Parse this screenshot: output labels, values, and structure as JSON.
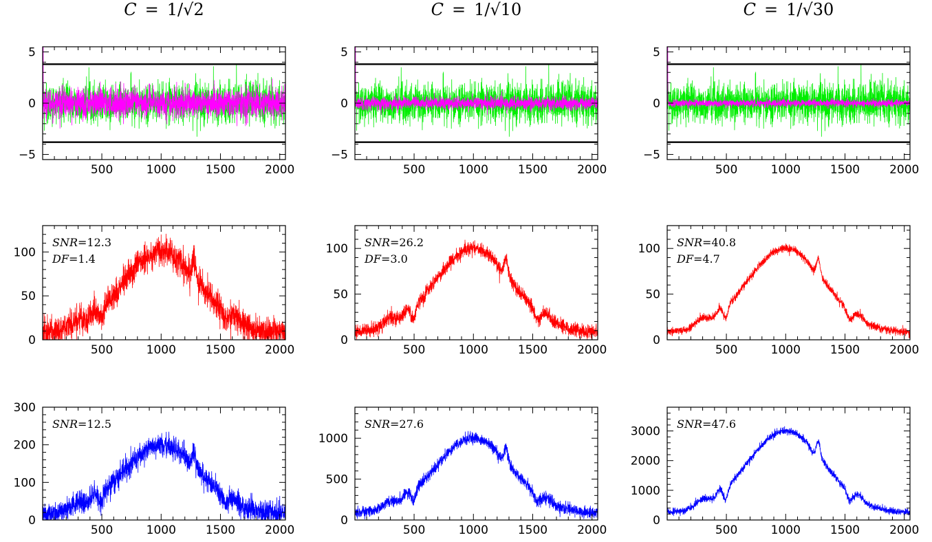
{
  "column_titles": [
    {
      "lhs": "C",
      "eq": "=",
      "rhs": "1/√2"
    },
    {
      "lhs": "C",
      "eq": "=",
      "rhs": "1/√10"
    },
    {
      "lhs": "C",
      "eq": "=",
      "rhs": "1/√30"
    }
  ],
  "colors": {
    "noise_green": "#00ee00",
    "noise_magenta": "#ff00ff",
    "signal_red": "#ff0000",
    "signal_blue": "#0000ff",
    "threshold_black": "#000000"
  },
  "chart_data": [
    {
      "type": "line",
      "row": 0,
      "col": 0,
      "xlim": [
        1,
        2048
      ],
      "ylim": [
        -5.5,
        5.5
      ],
      "xticks": [
        500,
        1000,
        1500,
        2000
      ],
      "yticks": [
        -5,
        0,
        5
      ],
      "threshold_lines": [
        3.8,
        -3.8
      ],
      "noise": {
        "green_sigma": 1.0,
        "magenta_sigma": 0.707,
        "green_spike": 3.6,
        "magenta_spike": 5.5
      },
      "annotations": []
    },
    {
      "type": "line",
      "row": 0,
      "col": 1,
      "xlim": [
        1,
        2048
      ],
      "ylim": [
        -5.5,
        5.5
      ],
      "xticks": [
        500,
        1000,
        1500,
        2000
      ],
      "yticks": [
        -5,
        0,
        5
      ],
      "threshold_lines": [
        3.8,
        -3.8
      ],
      "noise": {
        "green_sigma": 1.0,
        "magenta_sigma": 0.316,
        "green_spike": 3.6,
        "magenta_spike": 5.5
      },
      "annotations": []
    },
    {
      "type": "line",
      "row": 0,
      "col": 2,
      "xlim": [
        1,
        2048
      ],
      "ylim": [
        -5.5,
        5.5
      ],
      "xticks": [
        500,
        1000,
        1500,
        2000
      ],
      "yticks": [
        -5,
        0,
        5
      ],
      "threshold_lines": [
        3.8,
        -3.8
      ],
      "noise": {
        "green_sigma": 1.0,
        "magenta_sigma": 0.183,
        "green_spike": 3.6,
        "magenta_spike": 5.5
      },
      "annotations": []
    },
    {
      "type": "line",
      "row": 1,
      "col": 0,
      "xlim": [
        1,
        2048
      ],
      "ylim": [
        0,
        130
      ],
      "xticks": [
        500,
        1000,
        1500,
        2000
      ],
      "yticks": [
        0,
        50,
        100
      ],
      "profile_peak": 100,
      "noise_sigma": 8.5,
      "annotations": [
        {
          "name": "SNR",
          "value": "12.3"
        },
        {
          "name": "DF",
          "value": "1.4"
        }
      ]
    },
    {
      "type": "line",
      "row": 1,
      "col": 1,
      "xlim": [
        1,
        2048
      ],
      "ylim": [
        0,
        125
      ],
      "xticks": [
        500,
        1000,
        1500,
        2000
      ],
      "yticks": [
        0,
        50,
        100
      ],
      "profile_peak": 100,
      "noise_sigma": 3.8,
      "annotations": [
        {
          "name": "SNR",
          "value": "26.2"
        },
        {
          "name": "DF",
          "value": "3.0"
        }
      ]
    },
    {
      "type": "line",
      "row": 1,
      "col": 2,
      "xlim": [
        1,
        2048
      ],
      "ylim": [
        0,
        125
      ],
      "xticks": [
        500,
        1000,
        1500,
        2000
      ],
      "yticks": [
        0,
        50,
        100
      ],
      "profile_peak": 100,
      "noise_sigma": 2.2,
      "annotations": [
        {
          "name": "SNR",
          "value": "40.8"
        },
        {
          "name": "DF",
          "value": "4.7"
        }
      ]
    },
    {
      "type": "line",
      "row": 2,
      "col": 0,
      "xlim": [
        1,
        2048
      ],
      "ylim": [
        0,
        300
      ],
      "xticks": [
        500,
        1000,
        1500,
        2000
      ],
      "yticks": [
        0,
        100,
        200,
        300
      ],
      "profile_peak": 200,
      "noise_sigma": 15,
      "annotations": [
        {
          "name": "SNR",
          "value": "12.5"
        }
      ]
    },
    {
      "type": "line",
      "row": 2,
      "col": 1,
      "xlim": [
        1,
        2048
      ],
      "ylim": [
        0,
        1380
      ],
      "xticks": [
        500,
        1000,
        1500,
        2000
      ],
      "yticks": [
        0,
        500,
        1000
      ],
      "profile_peak": 1000,
      "noise_sigma": 35,
      "annotations": [
        {
          "name": "SNR",
          "value": "27.6"
        }
      ]
    },
    {
      "type": "line",
      "row": 2,
      "col": 2,
      "xlim": [
        1,
        2048
      ],
      "ylim": [
        0,
        3800
      ],
      "xticks": [
        500,
        1000,
        1500,
        2000
      ],
      "yticks": [
        0,
        1000,
        2000,
        3000
      ],
      "profile_peak": 3000,
      "noise_sigma": 60,
      "annotations": [
        {
          "name": "SNR",
          "value": "47.6"
        }
      ]
    }
  ]
}
